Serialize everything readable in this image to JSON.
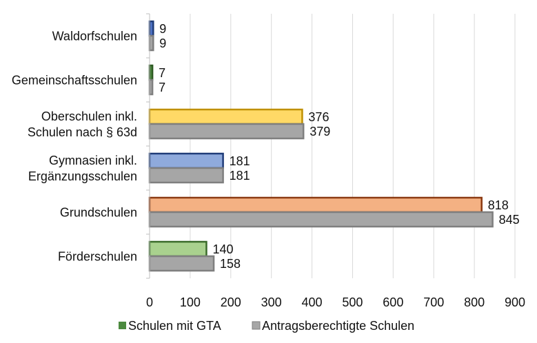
{
  "chart_data": {
    "type": "bar",
    "orientation": "horizontal",
    "categories": [
      [
        "Waldorfschulen"
      ],
      [
        "Gemeinschaftsschulen"
      ],
      [
        "Oberschulen inkl.",
        "Schulen nach § 63d"
      ],
      [
        "Gymnasien inkl.",
        "Ergänzungsschulen"
      ],
      [
        "Grundschulen"
      ],
      [
        "Förderschulen"
      ]
    ],
    "series": [
      {
        "name": "Schulen mit GTA",
        "values": [
          9,
          7,
          376,
          181,
          818,
          140
        ],
        "fill_colors": [
          "#4f72c4",
          "#4c8a3f",
          "#ffd966",
          "#8faadc",
          "#f4b183",
          "#a9d18e"
        ],
        "stroke_colors": [
          "#1f3c78",
          "#2e5a23",
          "#bf9000",
          "#1f3c78",
          "#8b3a12",
          "#3a6b2a"
        ],
        "legend_color": "#4c8a3f"
      },
      {
        "name": "Antragsberechtigte Schulen",
        "values": [
          9,
          7,
          379,
          181,
          845,
          158
        ],
        "fill_colors": [
          "#a6a6a6",
          "#a6a6a6",
          "#a6a6a6",
          "#a6a6a6",
          "#a6a6a6",
          "#a6a6a6"
        ],
        "stroke_colors": [
          "#7f7f7f",
          "#7f7f7f",
          "#7f7f7f",
          "#7f7f7f",
          "#7f7f7f",
          "#7f7f7f"
        ],
        "legend_color": "#a6a6a6"
      }
    ],
    "x_ticks": [
      "0",
      "100",
      "200",
      "300",
      "400",
      "500",
      "600",
      "700",
      "800",
      "900"
    ],
    "xlim": [
      0,
      900
    ],
    "grid": true,
    "legend_position": "bottom",
    "gridline_color": "#d9d9d9",
    "axis_color": "#bfbfbf"
  }
}
